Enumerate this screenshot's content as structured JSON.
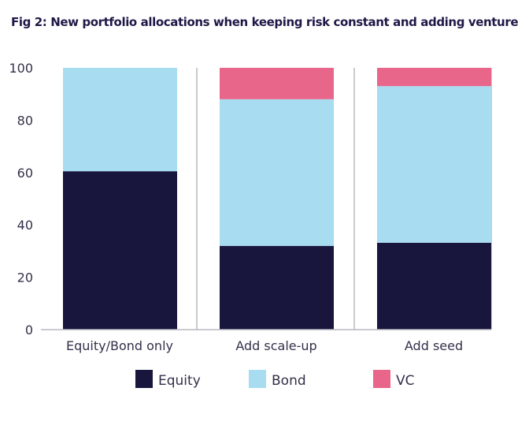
{
  "title": "Fig 2: New portfolio allocations when keeping risk constant and adding venture",
  "chart_data": {
    "type": "bar",
    "stacked": true,
    "categories": [
      "Equity/Bond only",
      "Add scale-up",
      "Add seed"
    ],
    "series": [
      {
        "name": "Equity",
        "color": "#19163d",
        "values": [
          60.5,
          32,
          33.2
        ]
      },
      {
        "name": "Bond",
        "color": "#a8dcf0",
        "values": [
          39.5,
          56,
          59.8
        ]
      },
      {
        "name": "VC",
        "color": "#e8668a",
        "values": [
          0,
          12,
          7
        ]
      }
    ],
    "ylim": [
      0,
      100
    ],
    "yticks": [
      "0",
      "20",
      "40",
      "60",
      "80",
      "100"
    ],
    "legend_position": "bottom",
    "grid": false,
    "category_separators": true
  }
}
